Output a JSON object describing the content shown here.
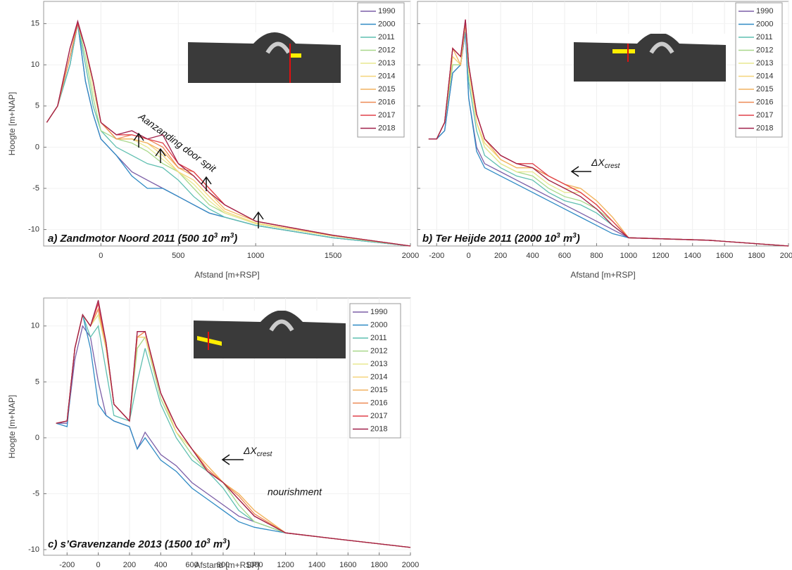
{
  "chart_data": [
    {
      "type": "line",
      "xlabel": "Afstand [m+RSP]",
      "ylabel": "Hoogte [m+NAP]",
      "label": [
        "a) Zandmotor Noord 2011 (500 10",
        "3",
        " m",
        "3",
        ")"
      ],
      "annotation": "Aanzanding door spit",
      "xlim": [
        -370,
        2000
      ],
      "ylim": [
        -12,
        17.7
      ],
      "xticks": [
        0,
        500,
        1000,
        1500,
        2000
      ],
      "yticks": [
        -10,
        -5,
        0,
        5,
        10,
        15
      ],
      "ytick_labels": true,
      "grid": true,
      "x": [
        -350,
        -280,
        -200,
        -150,
        -100,
        -50,
        0,
        100,
        200,
        300,
        400,
        500,
        600,
        700,
        800,
        1000,
        1500,
        2000
      ],
      "series": [
        {
          "name": "1990",
          "color": "#7b5ea7",
          "values": [
            3,
            5,
            10,
            15,
            8,
            4,
            1,
            -1,
            -3,
            -4,
            -5,
            -6,
            -7,
            -8,
            -8.5,
            -9.5,
            -11,
            -12
          ]
        },
        {
          "name": "2000",
          "color": "#2f8ac4",
          "values": [
            3,
            5,
            10,
            15,
            8,
            4,
            1,
            -1,
            -3.5,
            -5,
            -5,
            -6,
            -7,
            -8,
            -8.5,
            -9.5,
            -11,
            -12
          ]
        },
        {
          "name": "2011",
          "color": "#5fbfb0",
          "values": [
            3,
            5,
            10,
            15,
            10,
            5,
            2,
            0,
            -1,
            -2,
            -2.5,
            -4,
            -6,
            -7.5,
            -8.5,
            -9.5,
            -11,
            -12
          ]
        },
        {
          "name": "2012",
          "color": "#a8d88a",
          "values": [
            3,
            5,
            11,
            15,
            11,
            6,
            2,
            1,
            0.5,
            -0.5,
            -2,
            -3,
            -5,
            -7,
            -8,
            -9.3,
            -10.8,
            -12
          ]
        },
        {
          "name": "2013",
          "color": "#e8e890",
          "values": [
            3,
            5,
            11,
            15,
            12,
            7,
            3,
            1,
            1,
            0,
            -1.5,
            -3,
            -4.5,
            -6.5,
            -8,
            -9.3,
            -10.8,
            -12
          ]
        },
        {
          "name": "2014",
          "color": "#f5d57a",
          "values": [
            3,
            5,
            11,
            15,
            12,
            8,
            3,
            1,
            1,
            0.5,
            -1,
            -3,
            -4,
            -6,
            -7.8,
            -9.2,
            -10.8,
            -12
          ]
        },
        {
          "name": "2015",
          "color": "#f2b260",
          "values": [
            3,
            5,
            11,
            15,
            12,
            8,
            3,
            1,
            1,
            0.5,
            -0.5,
            -2.5,
            -3.5,
            -5.5,
            -7.5,
            -9,
            -10.7,
            -12
          ]
        },
        {
          "name": "2016",
          "color": "#ee8a55",
          "values": [
            3,
            5,
            11,
            15,
            12,
            8,
            3,
            1,
            1.5,
            1,
            0,
            -2.5,
            -3,
            -5,
            -7,
            -9,
            -10.7,
            -12
          ]
        },
        {
          "name": "2017",
          "color": "#e0404a",
          "values": [
            3,
            5,
            12,
            15,
            12,
            8,
            3,
            1.5,
            1.5,
            1,
            0.5,
            -2,
            -3,
            -5,
            -7,
            -9,
            -10.7,
            -12
          ]
        },
        {
          "name": "2018",
          "color": "#a0204a",
          "values": [
            3,
            5,
            12,
            15.3,
            12,
            8,
            3,
            1.5,
            2,
            1,
            1.5,
            -2,
            -3.5,
            -5.5,
            -7,
            -9,
            -10.7,
            -12
          ]
        }
      ]
    },
    {
      "type": "line",
      "xlabel": "Afstand [m+RSP]",
      "label": [
        "b) Ter Heijde 2011 (2000 10",
        "3",
        " m",
        "3",
        ")"
      ],
      "annotation": [
        "ΔX",
        "crest"
      ],
      "xlim": [
        -320,
        2000
      ],
      "ylim": [
        -12,
        17.7
      ],
      "xticks": [
        -200,
        0,
        200,
        400,
        600,
        800,
        1000,
        1200,
        1400,
        1600,
        1800,
        2000
      ],
      "yticks": [
        -10,
        -5,
        0,
        5,
        10,
        15
      ],
      "ytick_labels": false,
      "grid": true,
      "x": [
        -250,
        -200,
        -150,
        -100,
        -50,
        -20,
        0,
        50,
        100,
        200,
        300,
        400,
        500,
        600,
        700,
        800,
        900,
        1000,
        1500,
        2000
      ],
      "series": [
        {
          "name": "1990",
          "color": "#7b5ea7",
          "values": [
            1,
            1,
            2,
            9,
            10,
            14,
            6,
            0,
            -2,
            -3,
            -4,
            -5,
            -6,
            -7,
            -8,
            -9,
            -10,
            -11,
            -11.3,
            -12
          ]
        },
        {
          "name": "2000",
          "color": "#2f8ac4",
          "values": [
            1,
            1,
            2,
            9,
            10,
            14,
            6,
            -0.5,
            -2.5,
            -3.5,
            -4.5,
            -5.5,
            -6.5,
            -7.5,
            -8.5,
            -9.5,
            -10.5,
            -11,
            -11.3,
            -12
          ]
        },
        {
          "name": "2011",
          "color": "#5fbfb0",
          "values": [
            1,
            1,
            3,
            10,
            10,
            15,
            8,
            2,
            -1,
            -2.5,
            -3.5,
            -4,
            -5.5,
            -6.5,
            -7,
            -8,
            -9.5,
            -11,
            -11.3,
            -12
          ]
        },
        {
          "name": "2012",
          "color": "#a8d88a",
          "values": [
            1,
            1,
            3,
            10,
            10,
            15,
            9,
            3,
            0,
            -2,
            -3,
            -3.5,
            -5,
            -6,
            -6.5,
            -7.5,
            -9,
            -11,
            -11.3,
            -12
          ]
        },
        {
          "name": "2013",
          "color": "#e8e890",
          "values": [
            1,
            1,
            3,
            11,
            10,
            15,
            9,
            3,
            0,
            -2,
            -3,
            -3,
            -4.5,
            -5.5,
            -5.5,
            -7,
            -9,
            -11,
            -11.3,
            -12
          ]
        },
        {
          "name": "2014",
          "color": "#f5d57a",
          "values": [
            1,
            1,
            3,
            11,
            10,
            15,
            10,
            3,
            0.5,
            -1.5,
            -2.5,
            -2.5,
            -4,
            -5,
            -5,
            -6.5,
            -8.5,
            -11,
            -11.3,
            -12
          ]
        },
        {
          "name": "2015",
          "color": "#f2b260",
          "values": [
            1,
            1,
            3,
            12,
            10,
            15,
            10,
            4,
            1,
            -1.5,
            -2.5,
            -2.5,
            -3.5,
            -4.5,
            -5,
            -6.5,
            -8.5,
            -11,
            -11.3,
            -12
          ]
        },
        {
          "name": "2016",
          "color": "#ee8a55",
          "values": [
            1,
            1,
            3,
            12,
            11,
            15,
            10,
            4,
            1,
            -1,
            -2,
            -2.5,
            -3.5,
            -4.5,
            -5.5,
            -7,
            -9,
            -11,
            -11.3,
            -12
          ]
        },
        {
          "name": "2017",
          "color": "#e0404a",
          "values": [
            1,
            1,
            3,
            12,
            11,
            15.5,
            10,
            4,
            1,
            -1,
            -2,
            -2,
            -3.5,
            -4.5,
            -5.5,
            -7,
            -9,
            -11,
            -11.3,
            -12
          ]
        },
        {
          "name": "2018",
          "color": "#a0204a",
          "values": [
            1,
            1,
            3,
            12,
            11,
            15.5,
            10,
            4,
            1,
            -1,
            -2,
            -2.5,
            -4,
            -5,
            -6,
            -7.5,
            -9.5,
            -11,
            -11.3,
            -12
          ]
        }
      ]
    },
    {
      "type": "line",
      "xlabel": "Afstand [m+RSP]",
      "ylabel": "Hoogte [m+NAP]",
      "label": [
        "c) s’Gravenzande 2013 (1500 10",
        "3",
        " m",
        "3",
        ")"
      ],
      "annotation": [
        "ΔX",
        "crest"
      ],
      "note": "nourishment",
      "xlim": [
        -350,
        2000
      ],
      "ylim": [
        -10.5,
        12.5
      ],
      "xticks": [
        -200,
        0,
        200,
        400,
        600,
        800,
        1000,
        1200,
        1400,
        1600,
        1800,
        2000
      ],
      "yticks": [
        -10,
        -5,
        0,
        5,
        10
      ],
      "ytick_labels": true,
      "grid": true,
      "x": [
        -270,
        -200,
        -150,
        -100,
        -50,
        0,
        50,
        100,
        200,
        250,
        300,
        400,
        500,
        600,
        700,
        800,
        900,
        1000,
        1200,
        1500,
        2000
      ],
      "series": [
        {
          "name": "1990",
          "color": "#7b5ea7",
          "values": [
            1.3,
            1.3,
            7,
            10,
            9,
            5,
            2,
            1.5,
            1,
            -1,
            0.5,
            -1.5,
            -2.5,
            -4,
            -5,
            -6,
            -7,
            -7.5,
            -8.5,
            -9,
            -9.8
          ]
        },
        {
          "name": "2000",
          "color": "#2f8ac4",
          "values": [
            1.3,
            1,
            8,
            11,
            8,
            3,
            2,
            1.5,
            1,
            -1,
            0,
            -2,
            -3,
            -4.5,
            -5.5,
            -6.5,
            -7.5,
            -8,
            -8.5,
            -9,
            -9.8
          ]
        },
        {
          "name": "2011",
          "color": "#5fbfb0",
          "values": [
            1.3,
            1.5,
            8,
            11,
            9,
            10,
            6,
            2,
            1.5,
            5,
            8,
            3,
            0,
            -2,
            -3,
            -4.5,
            -6.5,
            -7.5,
            -8.5,
            -9,
            -9.8
          ]
        },
        {
          "name": "2012",
          "color": "#a8d88a",
          "values": [
            1.3,
            1.5,
            8,
            11,
            10,
            11,
            8,
            3,
            1.5,
            8,
            9,
            3.5,
            0.5,
            -1.5,
            -3,
            -4,
            -6,
            -7.5,
            -8.5,
            -9,
            -9.8
          ]
        },
        {
          "name": "2013",
          "color": "#e8e890",
          "values": [
            1.3,
            1.5,
            8,
            11,
            10,
            11,
            8,
            3,
            1.5,
            9,
            9,
            4,
            0.5,
            -1,
            -2.5,
            -4,
            -5.5,
            -7,
            -8.5,
            -9,
            -9.8
          ]
        },
        {
          "name": "2014",
          "color": "#f5d57a",
          "values": [
            1.3,
            1.5,
            8,
            11,
            10,
            11.5,
            8,
            3,
            1.5,
            9,
            9,
            4,
            0.5,
            -1,
            -2.5,
            -4,
            -5,
            -6.5,
            -8.5,
            -9,
            -9.8
          ]
        },
        {
          "name": "2015",
          "color": "#f2b260",
          "values": [
            1.3,
            1.5,
            8,
            11,
            10,
            11.5,
            8,
            3,
            1.5,
            9,
            9.5,
            4,
            1,
            -1,
            -2.5,
            -4,
            -5,
            -6.5,
            -8.5,
            -9,
            -9.8
          ]
        },
        {
          "name": "2016",
          "color": "#ee8a55",
          "values": [
            1.3,
            1.5,
            8,
            11,
            10,
            11.5,
            8.5,
            3,
            1.5,
            9,
            9.5,
            4,
            1,
            -1,
            -2.8,
            -4,
            -5.2,
            -6.8,
            -8.5,
            -9,
            -9.8
          ]
        },
        {
          "name": "2017",
          "color": "#e0404a",
          "values": [
            1.3,
            1.5,
            8,
            11,
            10,
            12,
            8.5,
            3,
            1.5,
            9.5,
            9.5,
            4,
            1,
            -1,
            -3,
            -4,
            -5.5,
            -7,
            -8.5,
            -9,
            -9.8
          ]
        },
        {
          "name": "2018",
          "color": "#a0204a",
          "values": [
            1.3,
            1.5,
            8,
            11,
            10,
            12.3,
            8.5,
            3,
            1.5,
            9.5,
            9.5,
            4,
            1,
            -1,
            -3,
            -4,
            -5.5,
            -7,
            -8.5,
            -9,
            -9.8
          ]
        }
      ]
    }
  ]
}
